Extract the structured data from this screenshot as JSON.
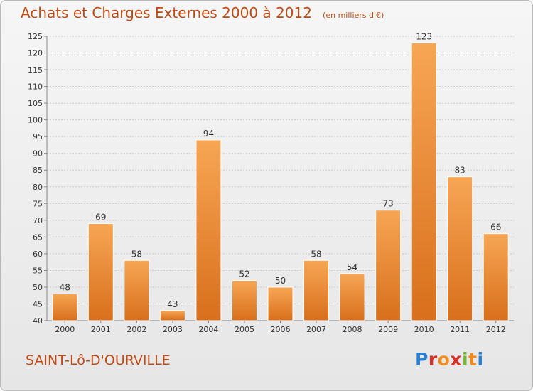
{
  "title": "Achats et Charges Externes 2000 à 2012",
  "unit": "(en milliers d'€)",
  "commune": "SAINT-Lô-D'OURVILLE",
  "logo": {
    "chars": [
      "P",
      "r",
      "o",
      "x",
      "i",
      "t",
      "i"
    ]
  },
  "colors": {
    "bar_top": "#f7a654",
    "bar_bottom": "#d86f1c",
    "title": "#c04a14"
  },
  "chart_data": {
    "type": "bar",
    "categories": [
      "2000",
      "2001",
      "2002",
      "2003",
      "2004",
      "2005",
      "2006",
      "2007",
      "2008",
      "2009",
      "2010",
      "2011",
      "2012"
    ],
    "values": [
      48,
      69,
      58,
      43,
      94,
      52,
      50,
      58,
      54,
      73,
      123,
      83,
      66
    ],
    "ylim": [
      40,
      125
    ],
    "yticks": [
      40,
      45,
      50,
      55,
      60,
      65,
      70,
      75,
      80,
      85,
      90,
      95,
      100,
      105,
      110,
      115,
      120,
      125
    ],
    "grid": true,
    "data_labels": true
  }
}
